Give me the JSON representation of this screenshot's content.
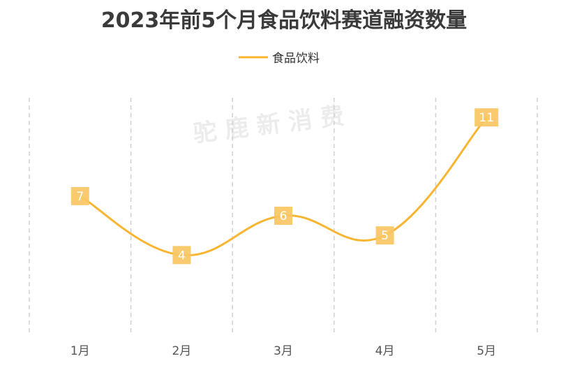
{
  "chart_data": {
    "type": "line",
    "title": "2023年前5个月食品饮料赛道融资数量",
    "categories": [
      "1月",
      "2月",
      "3月",
      "4月",
      "5月"
    ],
    "series": [
      {
        "name": "食品饮料",
        "values": [
          7,
          4,
          6,
          5,
          11
        ]
      }
    ],
    "ylim": [
      0,
      12
    ],
    "legend": "top-center",
    "grid": "vertical-dashed",
    "colors": {
      "line": "#F8B531",
      "label_bg": "#F9C762"
    }
  },
  "watermark": "驼 鹿 新 消 费"
}
